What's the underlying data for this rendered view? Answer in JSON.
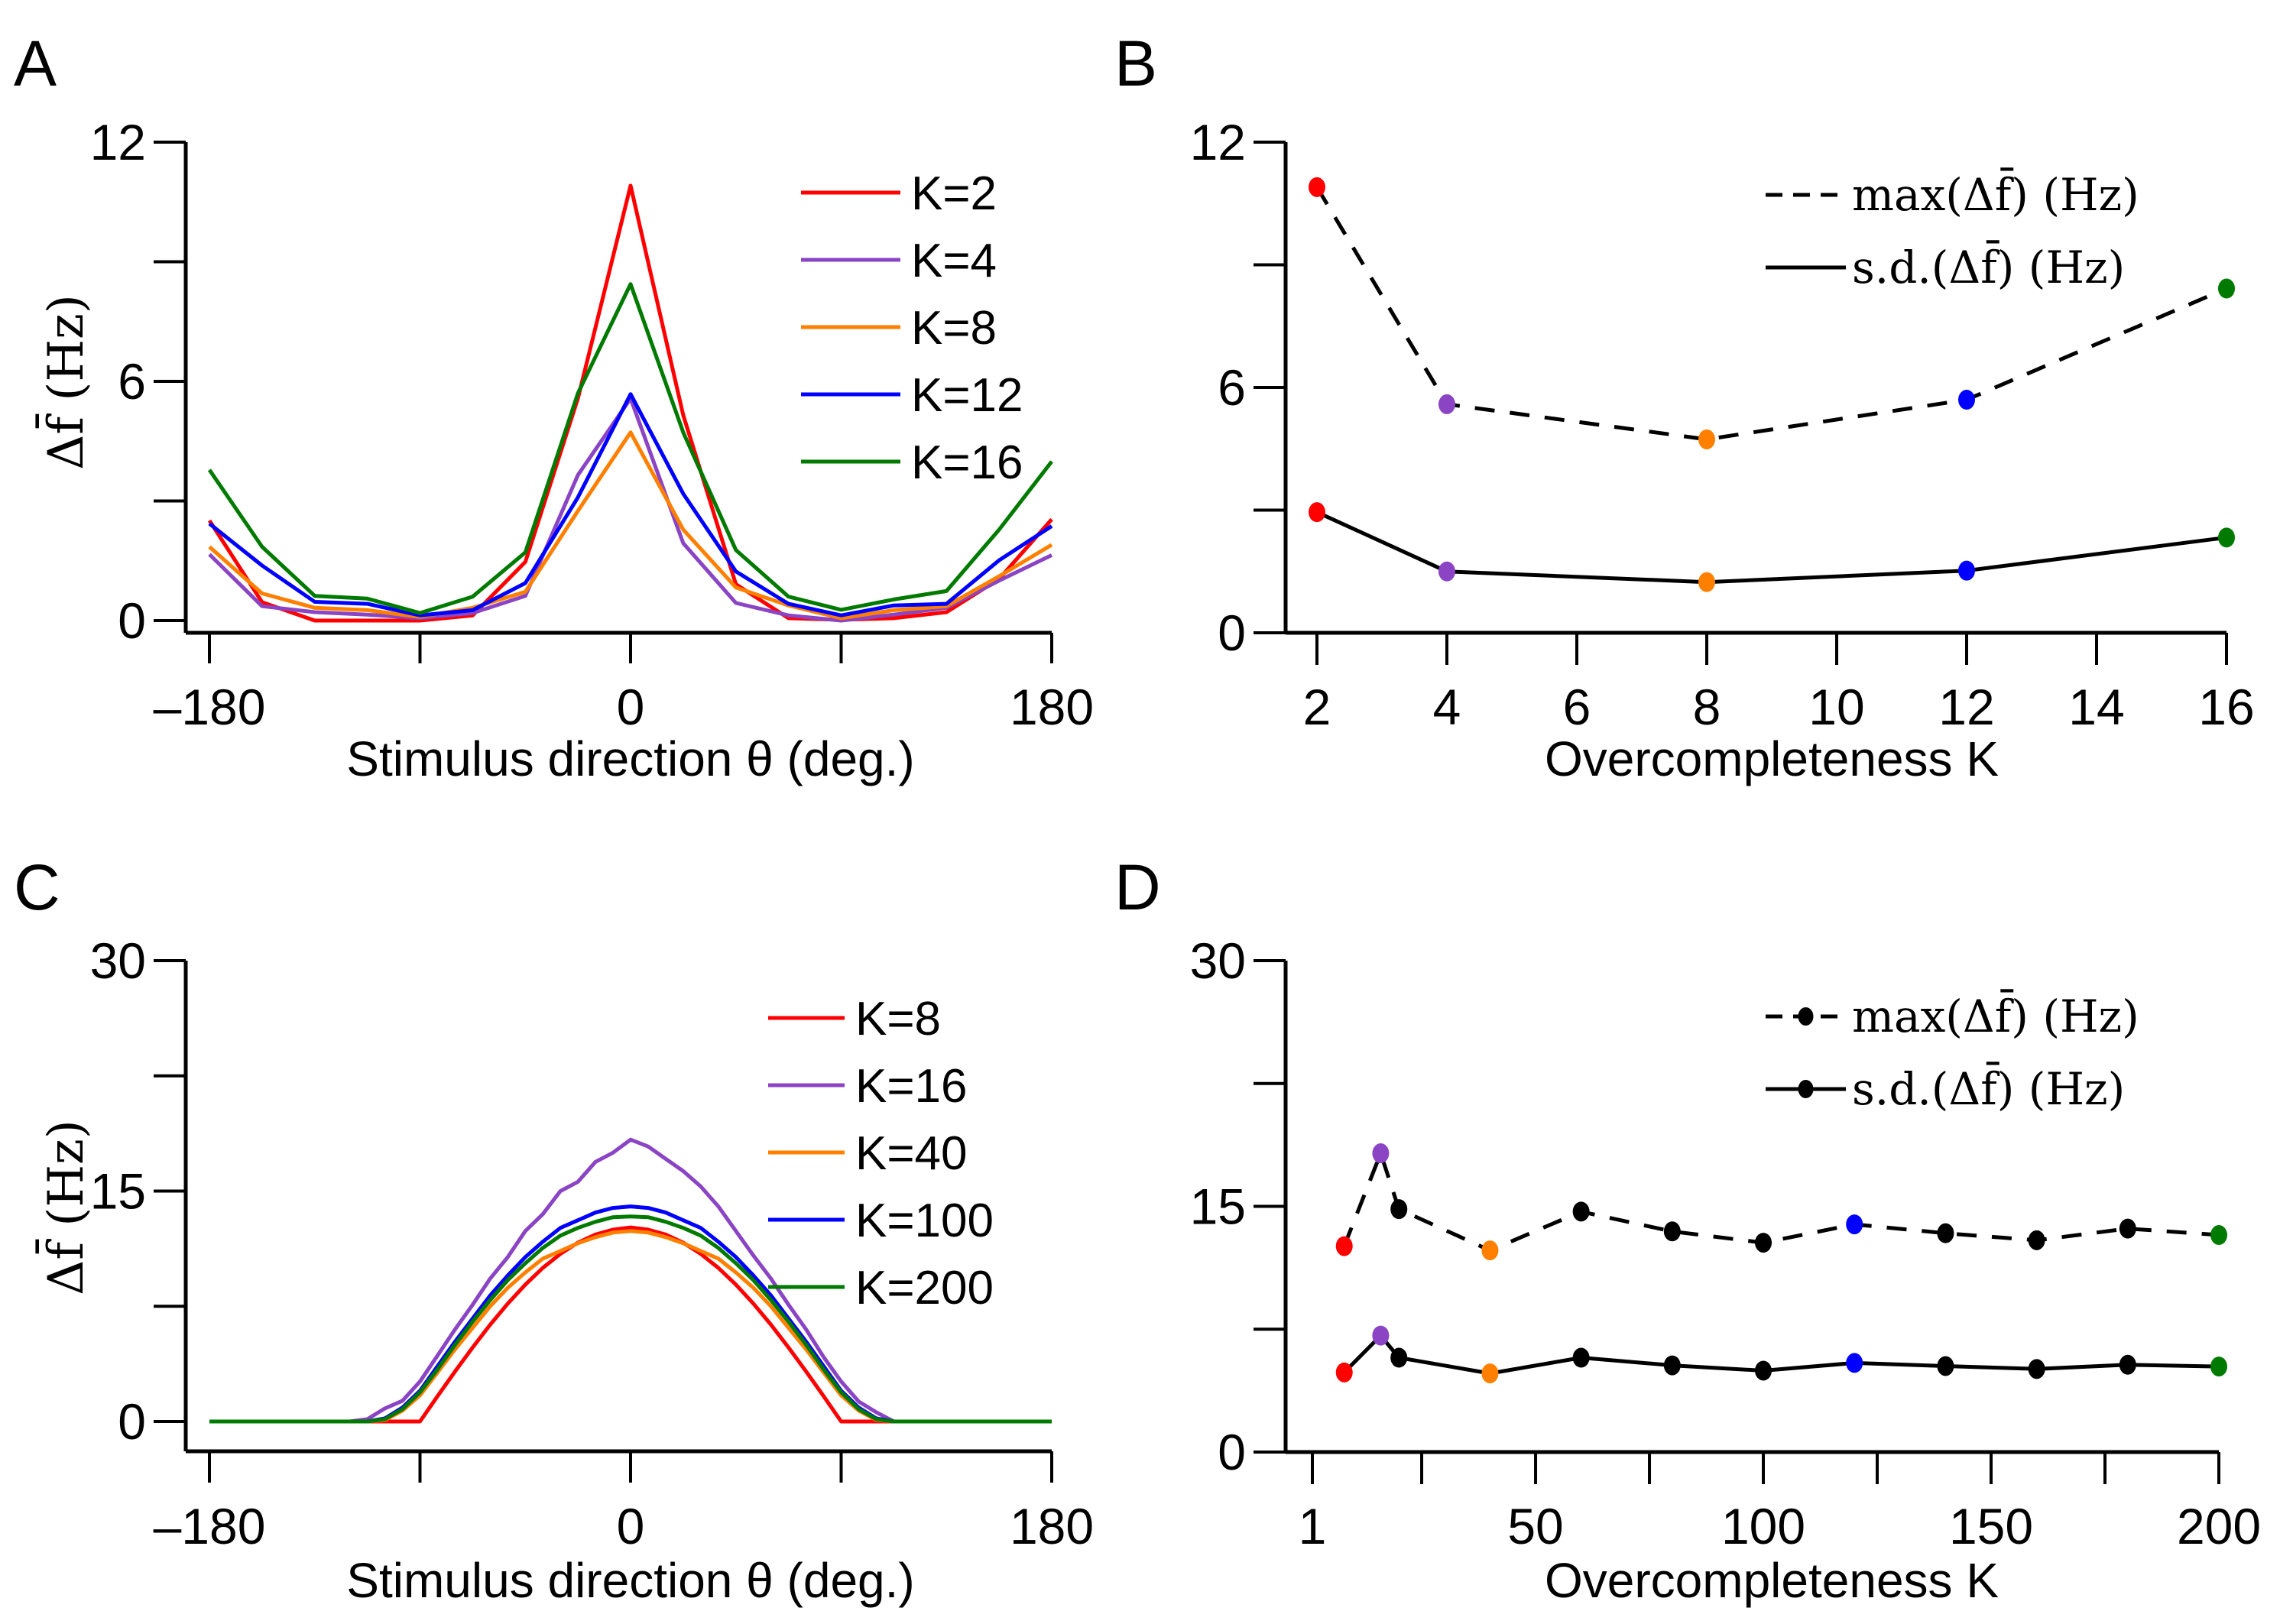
{
  "figure": {
    "panels": [
      "A",
      "B",
      "C",
      "D"
    ]
  },
  "colors": {
    "red": "#ff0000",
    "purple": "#8a44c4",
    "orange": "#ff8000",
    "blue": "#0000ff",
    "green": "#007a00",
    "black": "#000000"
  },
  "chart_data": [
    {
      "panel": "A",
      "type": "line",
      "title": "",
      "xlabel": "Stimulus direction  θ (deg.)",
      "ylabel": "Δf̄ (Hz)",
      "xlim": [
        -180,
        180
      ],
      "ylim": [
        0,
        12
      ],
      "xticks": [
        -180,
        -90,
        0,
        90,
        180
      ],
      "xtick_labels": [
        "–180",
        "",
        "0",
        "",
        "180"
      ],
      "yticks": [
        0,
        3,
        6,
        9,
        12
      ],
      "ytick_labels": [
        "0",
        "",
        "6",
        "",
        "12"
      ],
      "grid": false,
      "legend_position": "top-right",
      "x": [
        -180,
        -157.5,
        -135,
        -112.5,
        -90,
        -67.5,
        -45,
        -22.5,
        0,
        22.5,
        45,
        67.5,
        90,
        112.5,
        135,
        157.5,
        180
      ],
      "series": [
        {
          "name": "K=2",
          "color": "#ff0000",
          "values": [
            2.51,
            0.46,
            0.0,
            0.0,
            0.0,
            0.13,
            1.47,
            5.57,
            10.91,
            5.15,
            0.91,
            0.06,
            0.02,
            0.06,
            0.21,
            1.04,
            2.54
          ]
        },
        {
          "name": "K=4",
          "color": "#8a44c4",
          "values": [
            1.66,
            0.36,
            0.21,
            0.15,
            0.06,
            0.19,
            0.62,
            3.65,
            5.57,
            1.94,
            0.44,
            0.13,
            0.0,
            0.15,
            0.32,
            1.0,
            1.64
          ]
        },
        {
          "name": "K=8",
          "color": "#ff8000",
          "values": [
            1.85,
            0.68,
            0.32,
            0.26,
            0.09,
            0.32,
            0.72,
            2.75,
            4.72,
            2.28,
            0.83,
            0.38,
            0.06,
            0.26,
            0.36,
            1.11,
            1.9
          ]
        },
        {
          "name": "K=12",
          "color": "#0000ff",
          "values": [
            2.43,
            1.38,
            0.47,
            0.42,
            0.13,
            0.26,
            0.94,
            3.09,
            5.68,
            3.18,
            1.23,
            0.42,
            0.13,
            0.38,
            0.42,
            1.51,
            2.37
          ]
        },
        {
          "name": "K=16",
          "color": "#007a00",
          "values": [
            3.78,
            1.85,
            0.62,
            0.55,
            0.19,
            0.6,
            1.71,
            5.7,
            8.44,
            4.72,
            1.77,
            0.6,
            0.27,
            0.53,
            0.74,
            2.28,
            3.99
          ]
        }
      ]
    },
    {
      "panel": "B",
      "type": "line",
      "title": "",
      "xlabel": "Overcompleteness  K",
      "ylabel": "",
      "xlim": [
        2,
        16
      ],
      "ylim": [
        0,
        12
      ],
      "xticks": [
        2,
        4,
        6,
        8,
        10,
        12,
        14,
        16
      ],
      "xtick_labels": [
        "2",
        "4",
        "6",
        "8",
        "10",
        "12",
        "14",
        "16"
      ],
      "yticks": [
        0,
        3,
        6,
        9,
        12
      ],
      "ytick_labels": [
        "0",
        "",
        "6",
        "",
        "12"
      ],
      "grid": false,
      "legend_position": "top-right",
      "x": [
        2,
        4,
        8,
        12,
        16
      ],
      "point_colors": [
        "#ff0000",
        "#8a44c4",
        "#ff8000",
        "#0000ff",
        "#007a00"
      ],
      "series": [
        {
          "name": "max(Δf̄) (Hz)",
          "style": "dashed",
          "values": [
            10.9,
            5.59,
            4.73,
            5.7,
            8.42
          ]
        },
        {
          "name": "s.d.(Δf̄) (Hz)",
          "style": "solid",
          "values": [
            2.95,
            1.5,
            1.24,
            1.52,
            2.33
          ]
        }
      ]
    },
    {
      "panel": "C",
      "type": "line",
      "title": "",
      "xlabel": "Stimulus direction  θ (deg.)",
      "ylabel": "Δf̄ (Hz)",
      "xlim": [
        -180,
        180
      ],
      "ylim": [
        0,
        30
      ],
      "xticks": [
        -180,
        -90,
        0,
        90,
        180
      ],
      "xtick_labels": [
        "–180",
        "",
        "0",
        "",
        "180"
      ],
      "yticks": [
        0,
        7.5,
        15,
        22.5,
        30
      ],
      "ytick_labels": [
        "0",
        "",
        "15",
        "",
        "30"
      ],
      "grid": false,
      "legend_position": "top-right",
      "x": [
        -180,
        -165,
        -150,
        -135,
        -120,
        -112.5,
        -105,
        -97.5,
        -90,
        -82.5,
        -75,
        -67.5,
        -60,
        -52.5,
        -45,
        -37.5,
        -30,
        -22.5,
        -15,
        -7.5,
        0,
        7.5,
        15,
        22.5,
        30,
        37.5,
        45,
        52.5,
        60,
        67.5,
        75,
        82.5,
        90,
        97.5,
        105,
        112.5,
        120,
        135,
        150,
        165,
        180
      ],
      "series": [
        {
          "name": "K=8",
          "color": "#ff0000",
          "values": [
            0,
            0,
            0,
            0,
            0,
            0,
            0,
            0,
            0,
            1.65,
            3.26,
            4.82,
            6.3,
            7.67,
            8.91,
            10.0,
            10.91,
            11.64,
            12.17,
            12.49,
            12.63,
            12.49,
            12.17,
            11.64,
            10.91,
            10.0,
            8.91,
            7.67,
            6.3,
            4.82,
            3.26,
            1.65,
            0,
            0,
            0,
            0,
            0,
            0,
            0,
            0,
            0
          ]
        },
        {
          "name": "K=16",
          "color": "#8a44c4",
          "values": [
            0,
            0,
            0,
            0,
            0,
            0.15,
            0.85,
            1.35,
            2.6,
            4.3,
            6.0,
            7.6,
            9.3,
            10.7,
            12.4,
            13.5,
            15.0,
            15.6,
            16.9,
            17.5,
            18.35,
            17.9,
            17.1,
            16.3,
            15.3,
            14.0,
            12.4,
            10.8,
            9.3,
            7.6,
            6.0,
            4.2,
            2.6,
            1.3,
            0.6,
            0,
            0,
            0,
            0,
            0,
            0
          ]
        },
        {
          "name": "K=40",
          "color": "#ff8000",
          "values": [
            0,
            0,
            0,
            0,
            0,
            0,
            0.1,
            0.7,
            1.7,
            3.2,
            4.7,
            6.1,
            7.5,
            8.7,
            9.7,
            10.6,
            11.1,
            11.6,
            12.0,
            12.3,
            12.4,
            12.3,
            12.0,
            11.6,
            11.1,
            10.6,
            9.7,
            8.7,
            7.5,
            6.1,
            4.7,
            3.2,
            1.7,
            0.7,
            0.1,
            0,
            0,
            0,
            0,
            0,
            0
          ]
        },
        {
          "name": "K=100",
          "color": "#0000ff",
          "values": [
            0,
            0,
            0,
            0,
            0,
            0,
            0.2,
            0.9,
            2.0,
            3.6,
            5.2,
            6.7,
            8.2,
            9.5,
            10.7,
            11.7,
            12.6,
            13.1,
            13.6,
            13.9,
            14.0,
            13.9,
            13.6,
            13.1,
            12.6,
            11.7,
            10.7,
            9.5,
            8.2,
            6.7,
            5.2,
            3.6,
            2.0,
            0.9,
            0.2,
            0,
            0,
            0,
            0,
            0,
            0
          ]
        },
        {
          "name": "K=200",
          "color": "#007a00",
          "values": [
            0,
            0,
            0,
            0,
            0,
            0,
            0.15,
            0.8,
            1.9,
            3.4,
            5.0,
            6.5,
            7.9,
            9.2,
            10.3,
            11.3,
            12.1,
            12.6,
            13.0,
            13.3,
            13.35,
            13.3,
            13.0,
            12.6,
            12.1,
            11.3,
            10.3,
            9.2,
            7.9,
            6.5,
            5.0,
            3.4,
            1.9,
            0.8,
            0.15,
            0,
            0,
            0,
            0,
            0,
            0
          ]
        }
      ]
    },
    {
      "panel": "D",
      "type": "line",
      "title": "",
      "xlabel": "Overcompleteness  K",
      "ylabel": "",
      "xlim": [
        1,
        200
      ],
      "ylim": [
        0,
        30
      ],
      "xticks": [
        1,
        25,
        50,
        75,
        100,
        125,
        150,
        175,
        200
      ],
      "xtick_labels": [
        "1",
        "",
        "50",
        "",
        "100",
        "",
        "150",
        "",
        "200"
      ],
      "yticks": [
        0,
        7.5,
        15,
        22.5,
        30
      ],
      "ytick_labels": [
        "0",
        "",
        "15",
        "",
        "30"
      ],
      "grid": false,
      "legend_position": "top-right",
      "x": [
        8,
        16,
        20,
        40,
        60,
        80,
        100,
        120,
        140,
        160,
        180,
        200
      ],
      "point_colors": [
        "#ff0000",
        "#8a44c4",
        "#000000",
        "#ff8000",
        "#000000",
        "#000000",
        "#000000",
        "#0000ff",
        "#000000",
        "#000000",
        "#000000",
        "#007a00"
      ],
      "series": [
        {
          "name": "max(Δf̄) (Hz)",
          "style": "dashed",
          "values": [
            12.57,
            18.24,
            14.83,
            12.31,
            14.68,
            13.47,
            12.78,
            13.9,
            13.36,
            12.93,
            13.64,
            13.25
          ]
        },
        {
          "name": "s.d.(Δf̄) (Hz)",
          "style": "solid",
          "values": [
            4.86,
            7.11,
            5.76,
            4.8,
            5.76,
            5.29,
            4.97,
            5.44,
            5.25,
            5.07,
            5.33,
            5.22
          ]
        }
      ]
    }
  ]
}
